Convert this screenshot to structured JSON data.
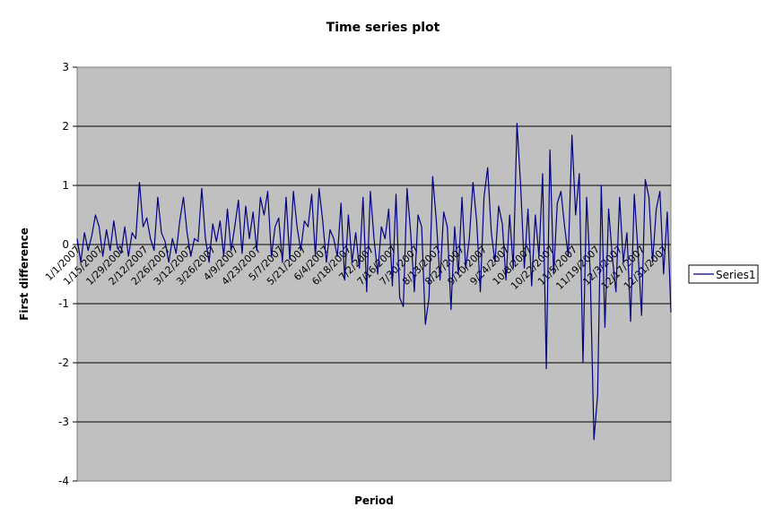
{
  "chart_data": {
    "type": "line",
    "title": "Time series plot",
    "xlabel": "Period",
    "ylabel": "First difference",
    "ylim": [
      -4,
      3
    ],
    "yticks": [
      3,
      2,
      1,
      0,
      -1,
      -2,
      -3,
      -4
    ],
    "grid": true,
    "legend_position": "right",
    "colors": {
      "plot_bg": "#c0c0c0",
      "line": "#000080",
      "grid": "#000000"
    },
    "xticks": [
      "1/1/2007",
      "1/15/2007",
      "1/29/2007",
      "2/12/2007",
      "2/26/2007",
      "3/12/2007",
      "3/26/2007",
      "4/9/2007",
      "4/23/2007",
      "5/7/2007",
      "5/21/2007",
      "6/4/2007",
      "6/18/2007",
      "7/2/2007",
      "7/16/2007",
      "7/30/2007",
      "8/13/2007",
      "8/27/2007",
      "9/10/2007",
      "9/24/2007",
      "10/8/2007",
      "10/22/2007",
      "11/5/2007",
      "11/19/2007",
      "12/3/2007",
      "12/17/2007",
      "12/31/2007"
    ],
    "x_start": "2007-01-01",
    "x_end": "2008-01-04",
    "series": [
      {
        "name": "Series1",
        "values": [
          0.1,
          -0.3,
          0.2,
          -0.1,
          0.15,
          0.5,
          0.3,
          -0.2,
          0.25,
          -0.1,
          0.4,
          -0.05,
          -0.15,
          0.3,
          -0.2,
          0.2,
          0.1,
          1.05,
          0.3,
          0.45,
          0.1,
          -0.1,
          0.8,
          0.2,
          0.05,
          -0.3,
          0.1,
          -0.15,
          0.4,
          0.8,
          0.2,
          -0.2,
          0.1,
          0.05,
          0.95,
          0.1,
          -0.3,
          0.35,
          0.05,
          0.4,
          -0.2,
          0.6,
          -0.1,
          0.3,
          0.75,
          -0.15,
          0.65,
          0.1,
          0.55,
          -0.1,
          0.8,
          0.5,
          0.9,
          -0.2,
          0.3,
          0.45,
          -0.3,
          0.8,
          -0.25,
          0.9,
          0.3,
          -0.1,
          0.4,
          0.3,
          0.85,
          -0.2,
          0.95,
          0.4,
          -0.3,
          0.25,
          0.1,
          -0.2,
          0.7,
          -0.6,
          0.5,
          -0.3,
          0.2,
          -0.4,
          0.8,
          -0.8,
          0.9,
          0.1,
          -0.5,
          0.3,
          0.1,
          0.6,
          -0.7,
          0.85,
          -0.9,
          -1.05,
          0.95,
          0.2,
          -0.8,
          0.5,
          0.3,
          -1.35,
          -0.9,
          1.15,
          0.4,
          -0.6,
          0.55,
          0.3,
          -1.1,
          0.3,
          -0.5,
          0.8,
          -0.4,
          0.1,
          1.05,
          0.4,
          -0.8,
          0.8,
          1.3,
          0.2,
          -0.3,
          0.65,
          0.35,
          -0.6,
          0.5,
          -0.4,
          2.05,
          1.0,
          -0.4,
          0.6,
          -0.7,
          0.5,
          -0.2,
          1.2,
          -2.1,
          1.6,
          -0.5,
          0.7,
          0.9,
          0.3,
          -0.2,
          1.85,
          0.5,
          1.2,
          -2.0,
          0.8,
          -0.5,
          -3.3,
          -2.55,
          1.0,
          -1.4,
          0.6,
          -0.2,
          -0.8,
          0.8,
          -0.3,
          0.2,
          -1.3,
          0.85,
          -0.1,
          -1.2,
          1.1,
          0.8,
          -0.3,
          0.6,
          0.9,
          -0.5,
          0.55,
          -1.15
        ]
      }
    ]
  }
}
